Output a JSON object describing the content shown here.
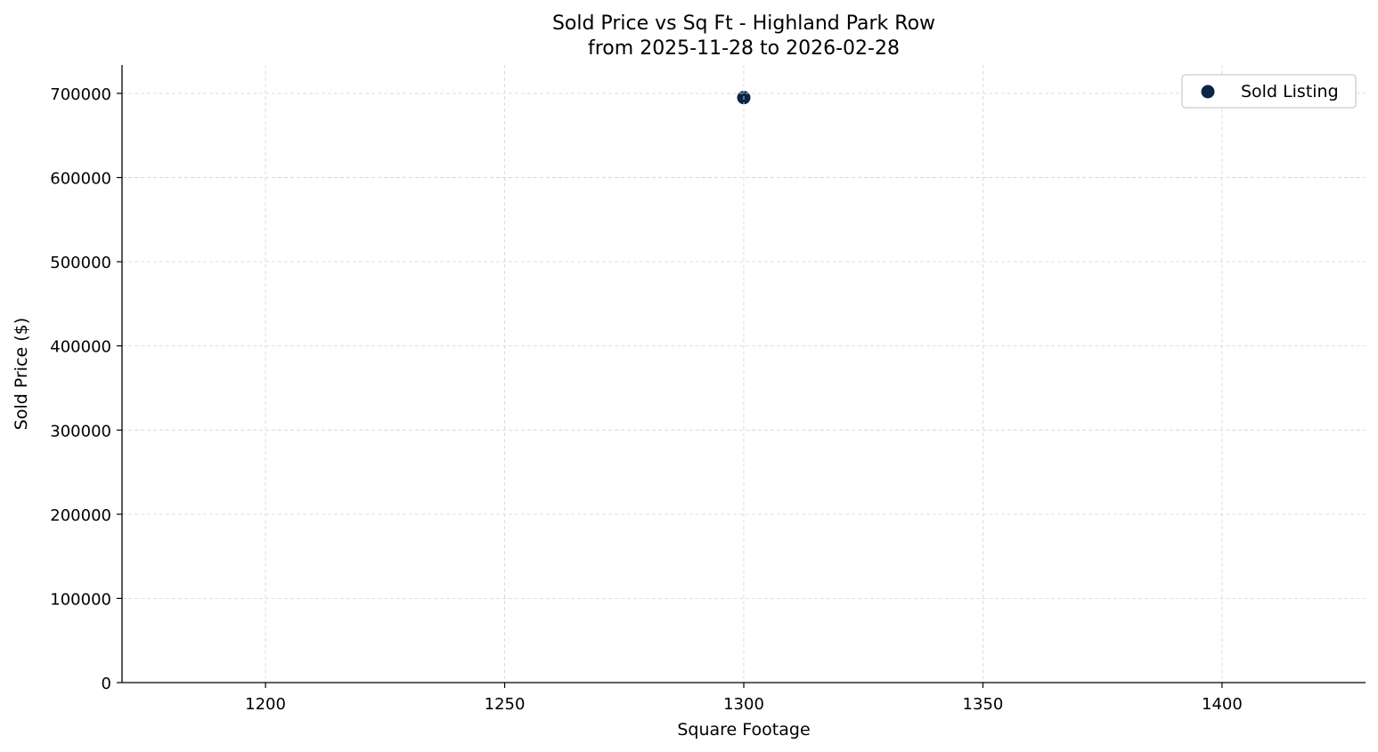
{
  "chart_data": {
    "type": "scatter",
    "title": "Sold Price vs Sq Ft - Highland Park Row",
    "subtitle": "from 2025-11-28 to 2026-02-28",
    "xlabel": "Square Footage",
    "ylabel": "Sold Price ($)",
    "xlim": [
      1170,
      1430
    ],
    "ylim": [
      0,
      733750
    ],
    "xticks": [
      1200,
      1250,
      1300,
      1350,
      1400
    ],
    "yticks": [
      0,
      100000,
      200000,
      300000,
      400000,
      500000,
      600000,
      700000
    ],
    "grid": true,
    "legend_position": "top-right",
    "series": [
      {
        "name": "Sold Listing",
        "color": "#0b2545",
        "points": [
          {
            "x": 1300,
            "y": 695000
          }
        ]
      }
    ]
  }
}
